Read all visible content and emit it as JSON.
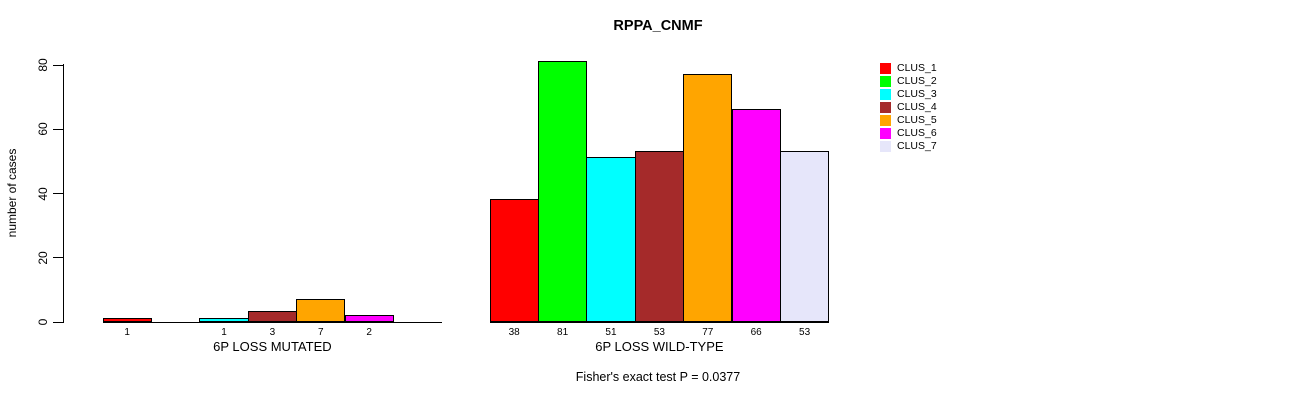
{
  "chart_data": {
    "type": "bar",
    "title": "RPPA_CNMF",
    "ylabel": "number of cases",
    "ylim": [
      0,
      80
    ],
    "yticks": [
      0,
      20,
      40,
      60,
      80
    ],
    "grid": false,
    "legend_position": "right",
    "clusters": [
      "CLUS_1",
      "CLUS_2",
      "CLUS_3",
      "CLUS_4",
      "CLUS_5",
      "CLUS_6",
      "CLUS_7"
    ],
    "colors": [
      "#FF0000",
      "#00FF00",
      "#00FFFF",
      "#A52A2A",
      "#FFA500",
      "#FF00FF",
      "#E6E6FA"
    ],
    "groups": [
      {
        "label": "6P LOSS MUTATED",
        "values": [
          1,
          0,
          1,
          3,
          7,
          2,
          0
        ]
      },
      {
        "label": "6P LOSS WILD-TYPE",
        "values": [
          38,
          81,
          51,
          53,
          77,
          66,
          53
        ]
      }
    ],
    "zero_bars_hidden": true,
    "annotation": "Fisher's exact test P = 0.0377"
  }
}
